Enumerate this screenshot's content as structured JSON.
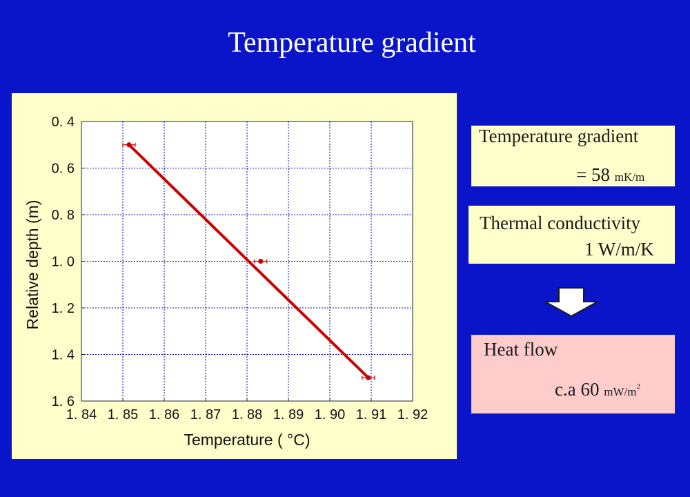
{
  "slide": {
    "title": "Temperature gradient"
  },
  "info_boxes": {
    "gradient": {
      "label": "Temperature gradient",
      "value_prefix": "= 58",
      "unit": "mK/m"
    },
    "conductivity": {
      "label": "Thermal conductivity",
      "value": "1 W/m/K"
    },
    "heat_flow": {
      "label": "Heat flow",
      "value_prefix": "c.a 60",
      "unit_main": "mW/m",
      "unit_sup": "2"
    }
  },
  "arrow": {
    "icon": "down-arrow-icon"
  },
  "colors": {
    "background": "#0a14c8",
    "chart_panel": "#ffffcc",
    "heat_box": "#ffcccc",
    "series": "#cc0000",
    "grid": "#0000cc"
  },
  "chart_data": {
    "type": "scatter",
    "xlabel": "Temperature ( °C)",
    "ylabel": "Relative depth (m)",
    "xlim": [
      1.84,
      1.92
    ],
    "ylim": [
      0.4,
      1.6
    ],
    "y_inverted": true,
    "x_ticks": [
      "1. 84",
      "1. 85",
      "1. 86",
      "1. 87",
      "1. 88",
      "1. 89",
      "1. 90",
      "1. 91",
      "1. 92"
    ],
    "x_tick_values": [
      1.84,
      1.85,
      1.86,
      1.87,
      1.88,
      1.89,
      1.9,
      1.91,
      1.92
    ],
    "y_ticks": [
      "0. 4",
      "0. 6",
      "0. 8",
      "1. 0",
      "1. 2",
      "1. 4",
      "1. 6"
    ],
    "y_tick_values": [
      0.4,
      0.6,
      0.8,
      1.0,
      1.2,
      1.4,
      1.6
    ],
    "grid": true,
    "series": [
      {
        "points": [
          {
            "x": 1.8515,
            "y": 0.5,
            "xerr": 0.0015
          },
          {
            "x": 1.8833,
            "y": 1.0,
            "xerr": 0.0015
          },
          {
            "x": 1.9093,
            "y": 1.5,
            "xerr": 0.0015
          }
        ]
      }
    ],
    "fit_line": {
      "x": [
        1.8515,
        1.9093
      ],
      "y": [
        0.5,
        1.5
      ]
    }
  }
}
